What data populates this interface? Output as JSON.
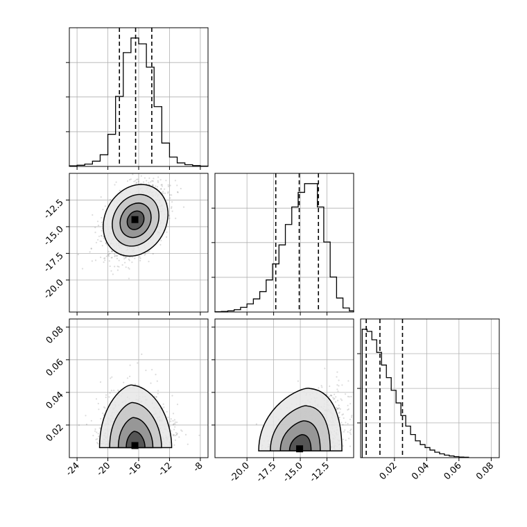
{
  "chart_data": [
    {
      "type": "histogram",
      "panel": "p0_hist",
      "x_range": [
        -25,
        -7
      ],
      "grid": true,
      "quantiles": [
        -18.5,
        -16.4,
        -14.3
      ],
      "bin_edges": [
        -25,
        -24,
        -23,
        -22,
        -21,
        -20,
        -19,
        -18,
        -17,
        -16,
        -15,
        -14,
        -13,
        -12,
        -11,
        -10,
        -9,
        -8,
        -7
      ],
      "counts": [
        2,
        4,
        8,
        18,
        40,
        110,
        240,
        390,
        440,
        420,
        340,
        205,
        80,
        32,
        12,
        6,
        3,
        1
      ]
    },
    {
      "type": "scatter-density",
      "panel": "p0_vs_p1",
      "x_range": [
        -25,
        -7
      ],
      "y_range": [
        -23,
        -10
      ],
      "y_tick_labels": [
        "-12.5",
        "-15.0",
        "-17.5",
        "-20.0"
      ],
      "center": [
        -16.4,
        -14.4
      ],
      "contour_levels": [
        "0.5σ",
        "1σ",
        "1.5σ",
        "2σ"
      ]
    },
    {
      "type": "histogram",
      "panel": "p1_hist",
      "x_range": [
        -23,
        -10
      ],
      "grid": true,
      "quantiles": [
        -17.3,
        -15.1,
        -13.3
      ],
      "bin_edges": [
        -23,
        -22.4,
        -21.8,
        -21.2,
        -20.6,
        -20,
        -19.4,
        -18.8,
        -18.2,
        -17.6,
        -17,
        -16.4,
        -15.8,
        -15.2,
        -14.6,
        -14,
        -13.4,
        -12.8,
        -12.2,
        -11.6,
        -11,
        -10.4,
        -10
      ],
      "counts": [
        1,
        2,
        4,
        8,
        16,
        28,
        45,
        70,
        110,
        165,
        230,
        300,
        360,
        410,
        440,
        440,
        360,
        240,
        120,
        48,
        14,
        4
      ]
    },
    {
      "type": "scatter-density",
      "panel": "p0_vs_p2",
      "x_range": [
        -25,
        -7
      ],
      "y_range": [
        0,
        0.085
      ],
      "x_tick_labels": [
        "-24",
        "-20",
        "-16",
        "-12",
        "-8"
      ],
      "y_tick_labels": [
        "0.08",
        "0.06",
        "0.04",
        "0.02"
      ],
      "center": [
        -16.4,
        0.007
      ]
    },
    {
      "type": "scatter-density",
      "panel": "p1_vs_p2",
      "x_range": [
        -23,
        -10
      ],
      "y_range": [
        0,
        0.085
      ],
      "x_tick_labels": [
        "-20.0",
        "-17.5",
        "-15.0",
        "-12.5"
      ],
      "center": [
        -15.0,
        0.005
      ]
    },
    {
      "type": "histogram",
      "panel": "p2_hist",
      "x_range": [
        -0.001,
        0.085
      ],
      "grid": true,
      "x_tick_labels": [
        "0.02",
        "0.04",
        "0.06",
        "0.08"
      ],
      "quantiles": [
        0.0025,
        0.011,
        0.025
      ],
      "bin_edges": [
        0,
        0.003,
        0.006,
        0.009,
        0.012,
        0.015,
        0.018,
        0.021,
        0.024,
        0.027,
        0.03,
        0.033,
        0.036,
        0.039,
        0.042,
        0.045,
        0.048,
        0.051,
        0.054,
        0.057,
        0.06,
        0.063,
        0.066
      ],
      "counts": [
        610,
        600,
        560,
        500,
        440,
        380,
        320,
        260,
        200,
        150,
        110,
        80,
        62,
        48,
        36,
        26,
        18,
        12,
        8,
        5,
        3,
        2
      ]
    }
  ]
}
